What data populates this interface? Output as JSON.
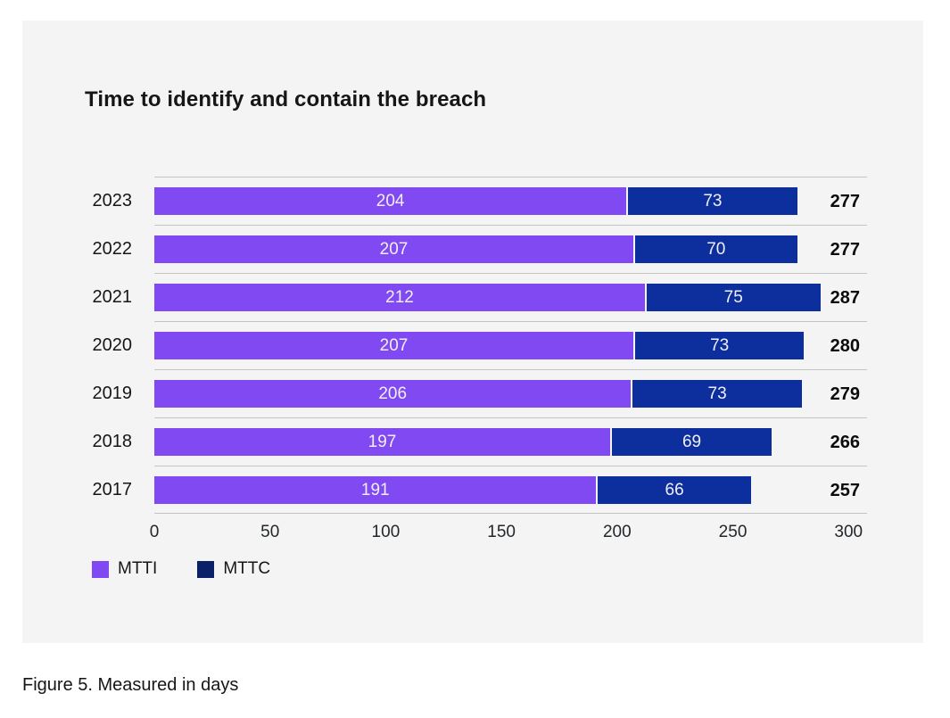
{
  "title": "Time to identify and contain the breach",
  "caption": "Figure 5. Measured in days",
  "legend": [
    {
      "label": "MTTI",
      "color": "#8149f2"
    },
    {
      "label": "MTTC",
      "color": "#0a2068"
    }
  ],
  "colors": {
    "card_background": "#f4f4f4",
    "page_background": "#ffffff",
    "mtti_bar": "#8149f2",
    "mttc_bar": "#0d2f9e",
    "gridline": "#c3c3c3",
    "bar_value_text": "#f1eff8",
    "total_text": "#0b0b0b"
  },
  "chart_data": {
    "type": "bar",
    "orientation": "horizontal",
    "stacked": true,
    "title": "Time to identify and contain the breach",
    "categories": [
      "2023",
      "2022",
      "2021",
      "2020",
      "2019",
      "2018",
      "2017"
    ],
    "series": [
      {
        "name": "MTTI",
        "color": "#8149f2",
        "values": [
          204,
          207,
          212,
          207,
          206,
          197,
          191
        ]
      },
      {
        "name": "MTTC",
        "color": "#0d2f9e",
        "values": [
          73,
          70,
          75,
          73,
          73,
          69,
          66
        ]
      }
    ],
    "totals": [
      277,
      277,
      287,
      280,
      279,
      266,
      257
    ],
    "xlabel": "",
    "ylabel": "",
    "x_ticks": [
      0,
      50,
      100,
      150,
      200,
      250,
      300
    ],
    "xlim": [
      0,
      308
    ],
    "grid": true,
    "legend_position": "bottom",
    "units": "days"
  }
}
